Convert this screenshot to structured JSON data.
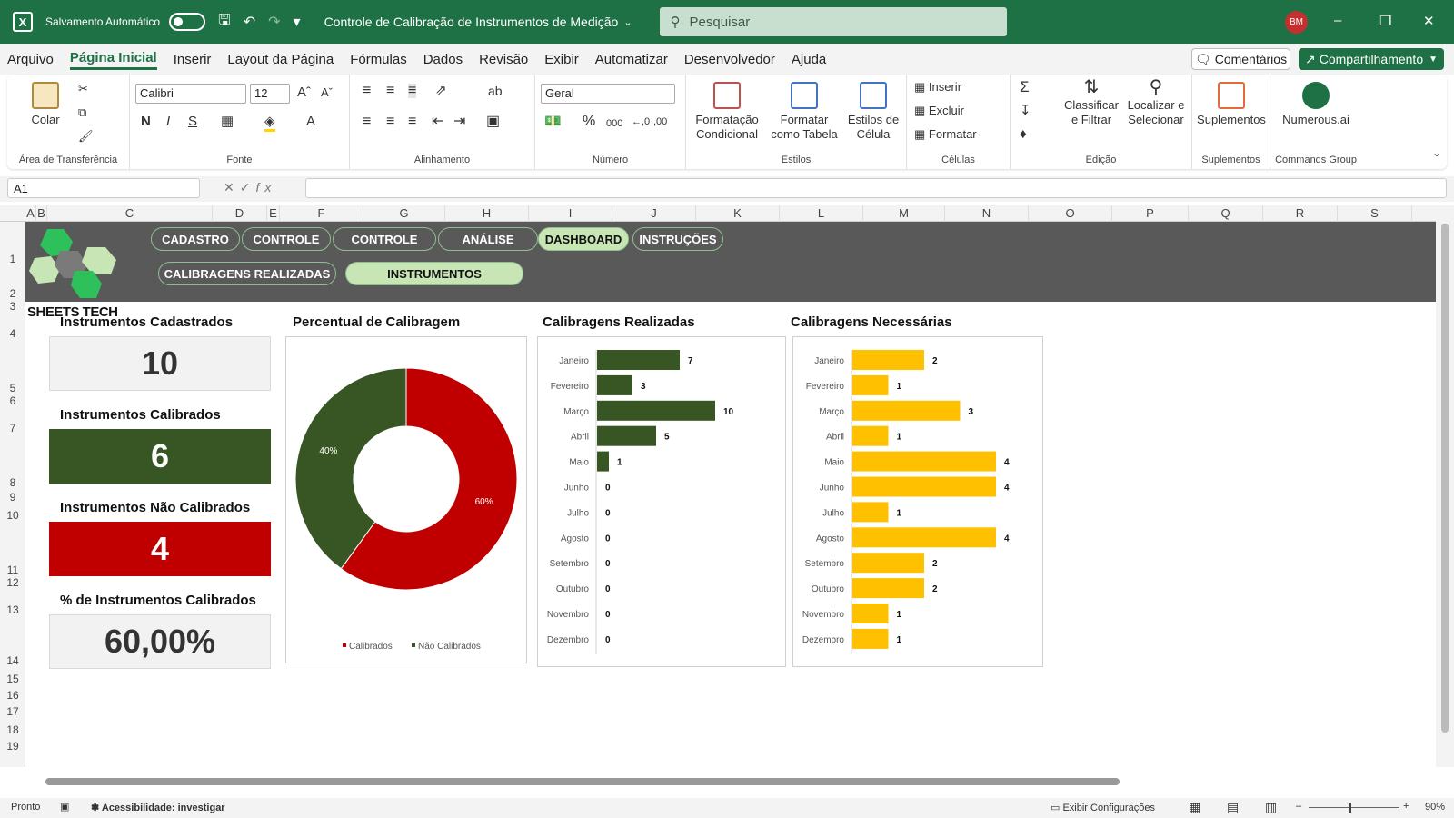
{
  "titlebar": {
    "autosave_label": "Salvamento Automático",
    "doc_title": "Controle de Calibração de Instrumentos de Medição",
    "search_placeholder": "Pesquisar",
    "user_initials": "BM"
  },
  "menu": {
    "items": [
      "Arquivo",
      "Página Inicial",
      "Inserir",
      "Layout da Página",
      "Fórmulas",
      "Dados",
      "Revisão",
      "Exibir",
      "Automatizar",
      "Desenvolvedor",
      "Ajuda"
    ],
    "active": "Página Inicial",
    "comments": "Comentários",
    "share": "Compartilhamento"
  },
  "ribbon": {
    "clipboard": {
      "paste": "Colar",
      "label": "Área de Transferência"
    },
    "font": {
      "name": "Calibri",
      "size": "12",
      "label": "Fonte"
    },
    "alignment": {
      "label": "Alinhamento"
    },
    "number": {
      "format": "Geral",
      "label": "Número"
    },
    "styles": {
      "conditional": "Formatação Condicional",
      "table": "Formatar como Tabela",
      "cell": "Estilos de Célula",
      "label": "Estilos"
    },
    "cells": {
      "insert": "Inserir",
      "delete": "Excluir",
      "format": "Formatar",
      "label": "Células"
    },
    "editing": {
      "sort": "Classificar e Filtrar",
      "find": "Localizar e Selecionar",
      "label": "Edição"
    },
    "addins": {
      "button": "Suplementos",
      "label": "Suplementos"
    },
    "commands": {
      "button": "Numerous.ai",
      "label": "Commands Group"
    }
  },
  "formula_bar": {
    "name_box": "A1",
    "formula": ""
  },
  "columns": [
    "A",
    "B",
    "C",
    "D",
    "E",
    "F",
    "G",
    "H",
    "I",
    "J",
    "K",
    "L",
    "M",
    "N",
    "O",
    "P",
    "Q",
    "R",
    "S"
  ],
  "rows": [
    "1",
    "2",
    "3",
    "4",
    "5",
    "6",
    "7",
    "8",
    "9",
    "10",
    "11",
    "12",
    "13",
    "14",
    "15",
    "16",
    "17",
    "18",
    "19"
  ],
  "dashboard": {
    "logo_text": "SHEETS TECH",
    "nav": [
      "CADASTRO",
      "CONTROLE",
      "CONTROLE",
      "ANÁLISE",
      "DASHBOARD",
      "INSTRUÇÕES"
    ],
    "nav2": [
      "CALIBRAGENS REALIZADAS",
      "INSTRUMENTOS"
    ],
    "kpis": [
      {
        "title": "Instrumentos Cadastrados",
        "value": "10",
        "bg": "#f2f2f2",
        "fg": "#333333"
      },
      {
        "title": "Instrumentos Calibrados",
        "value": "6",
        "bg": "#375623",
        "fg": "#ffffff"
      },
      {
        "title": "Instrumentos Não Calibrados",
        "value": "4",
        "bg": "#c00000",
        "fg": "#ffffff"
      },
      {
        "title": "% de Instrumentos Calibrados",
        "value": "60,00%",
        "bg": "#f2f2f2",
        "fg": "#333333"
      }
    ]
  },
  "chart_data": [
    {
      "type": "pie",
      "title": "Percentual de Calibragem",
      "labels": [
        "Calibrados",
        "Não Calibrados"
      ],
      "values": [
        60,
        40
      ],
      "value_labels": [
        "60%",
        "40%"
      ],
      "colors": [
        "#c00000",
        "#375623"
      ],
      "donut": true,
      "legend": "bottom"
    },
    {
      "type": "bar",
      "title": "Calibragens Realizadas",
      "orientation": "horizontal",
      "categories": [
        "Janeiro",
        "Fevereiro",
        "Março",
        "Abril",
        "Maio",
        "Junho",
        "Julho",
        "Agosto",
        "Setembro",
        "Outubro",
        "Novembro",
        "Dezembro"
      ],
      "values": [
        7,
        3,
        10,
        5,
        1,
        0,
        0,
        0,
        0,
        0,
        0,
        0
      ],
      "color": "#375623"
    },
    {
      "type": "bar",
      "title": "Calibragens Necessárias",
      "orientation": "horizontal",
      "categories": [
        "Janeiro",
        "Fevereiro",
        "Março",
        "Abril",
        "Maio",
        "Junho",
        "Julho",
        "Agosto",
        "Setembro",
        "Outubro",
        "Novembro",
        "Dezembro"
      ],
      "values": [
        2,
        1,
        3,
        1,
        4,
        4,
        1,
        4,
        2,
        2,
        1,
        1
      ],
      "color": "#ffc000"
    }
  ],
  "status": {
    "mode": "Pronto",
    "accessibility": "Acessibilidade: investigar",
    "display_settings": "Exibir Configurações",
    "zoom": "90%"
  }
}
